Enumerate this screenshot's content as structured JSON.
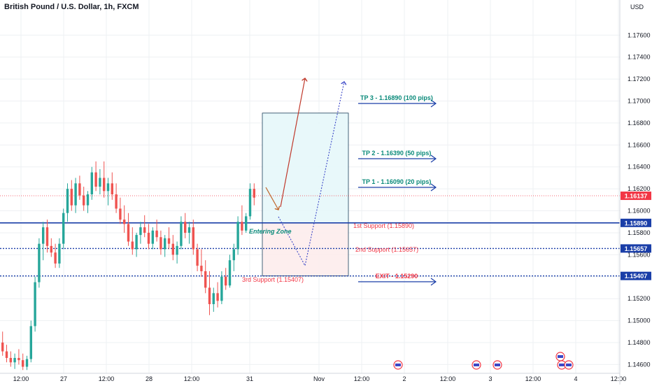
{
  "header": {
    "title": "British Pound / U.S. Dollar, 1h, FXCM",
    "currency": "USD"
  },
  "colors": {
    "bull": "#26a69a",
    "bear": "#ef5350",
    "level": "#1a3ea8",
    "price": "#f23645",
    "tp": "#0a8a7a",
    "exit": "#f23645",
    "grid": "#eef0f3",
    "axis_text": "#131722"
  },
  "chart_data": {
    "type": "candlestick",
    "symbol": "GBPUSD",
    "timeframe": "1h",
    "ylim": [
      1.1452,
      1.1792
    ],
    "y_ticks": [
      "1.17600",
      "1.17400",
      "1.17200",
      "1.17000",
      "1.16800",
      "1.16600",
      "1.16400",
      "1.16200",
      "1.16000",
      "1.15800",
      "1.15600",
      "1.15400",
      "1.15200",
      "1.15000",
      "1.14800",
      "1.14600"
    ],
    "x_ticks": [
      "12:00",
      "27",
      "12:00",
      "28",
      "12:00",
      "31",
      "Nov",
      "12:00",
      "2",
      "12:00",
      "3",
      "12:00",
      "4",
      "12:00"
    ],
    "last_price": {
      "value": 1.16137,
      "label": "1.16137"
    },
    "levels": [
      {
        "value": 1.1589,
        "label": "1.15890",
        "style": "solid",
        "annotation": "1st Support (1.15890)"
      },
      {
        "value": 1.15657,
        "label": "1.15657",
        "style": "dotted",
        "annotation": "2nd Support (1.15657)"
      },
      {
        "value": 1.15407,
        "label": "1.15407",
        "style": "dotted",
        "annotation": "3rd Support (1.15407)"
      }
    ],
    "targets": [
      {
        "label": "TP 3 - 1.16890 (100 pips)",
        "value": 1.1689
      },
      {
        "label": "TP 2 - 1.16390 (50 pips)",
        "value": 1.1639
      },
      {
        "label": "TP 1 - 1.16090 (20 pips)",
        "value": 1.1609
      },
      {
        "label": "EXIT - 1.15290",
        "value": 1.1529
      }
    ],
    "zone_label": "Entering Zone",
    "candles": [
      [
        1.148,
        1.149,
        1.1468,
        1.1472
      ],
      [
        1.1472,
        1.1478,
        1.1462,
        1.1466
      ],
      [
        1.1466,
        1.1472,
        1.1458,
        1.1462
      ],
      [
        1.1462,
        1.147,
        1.1456,
        1.1466
      ],
      [
        1.1466,
        1.1474,
        1.146,
        1.1464
      ],
      [
        1.1464,
        1.147,
        1.1455,
        1.1458
      ],
      [
        1.1458,
        1.1468,
        1.1455,
        1.1465
      ],
      [
        1.1465,
        1.15,
        1.1462,
        1.1495
      ],
      [
        1.1495,
        1.154,
        1.149,
        1.1535
      ],
      [
        1.1535,
        1.1575,
        1.153,
        1.157
      ],
      [
        1.157,
        1.159,
        1.1555,
        1.1585
      ],
      [
        1.1585,
        1.1592,
        1.1562,
        1.1568
      ],
      [
        1.1568,
        1.1575,
        1.1558,
        1.1562
      ],
      [
        1.1562,
        1.157,
        1.1548,
        1.1552
      ],
      [
        1.1552,
        1.1575,
        1.1548,
        1.157
      ],
      [
        1.157,
        1.1602,
        1.1565,
        1.1598
      ],
      [
        1.1598,
        1.1625,
        1.159,
        1.162
      ],
      [
        1.162,
        1.1628,
        1.16,
        1.1605
      ],
      [
        1.1605,
        1.163,
        1.1598,
        1.1625
      ],
      [
        1.1625,
        1.1632,
        1.161,
        1.1614
      ],
      [
        1.1614,
        1.1622,
        1.16,
        1.1605
      ],
      [
        1.1605,
        1.1618,
        1.1598,
        1.1615
      ],
      [
        1.1615,
        1.164,
        1.161,
        1.1635
      ],
      [
        1.1635,
        1.1645,
        1.1618,
        1.1622
      ],
      [
        1.1622,
        1.1638,
        1.1615,
        1.163
      ],
      [
        1.163,
        1.1645,
        1.1612,
        1.1618
      ],
      [
        1.1618,
        1.163,
        1.1605,
        1.1625
      ],
      [
        1.1625,
        1.1635,
        1.161,
        1.1615
      ],
      [
        1.1615,
        1.1625,
        1.1598,
        1.1602
      ],
      [
        1.1602,
        1.1612,
        1.1588,
        1.1592
      ],
      [
        1.1592,
        1.1605,
        1.158,
        1.1588
      ],
      [
        1.1588,
        1.1598,
        1.1568,
        1.1572
      ],
      [
        1.1572,
        1.1585,
        1.156,
        1.1565
      ],
      [
        1.1565,
        1.158,
        1.1558,
        1.1578
      ],
      [
        1.1578,
        1.159,
        1.157,
        1.1585
      ],
      [
        1.1585,
        1.1596,
        1.1576,
        1.158
      ],
      [
        1.158,
        1.1588,
        1.1565,
        1.157
      ],
      [
        1.157,
        1.1585,
        1.1565,
        1.1582
      ],
      [
        1.1582,
        1.1592,
        1.1572,
        1.1576
      ],
      [
        1.1576,
        1.1582,
        1.156,
        1.1565
      ],
      [
        1.1565,
        1.1578,
        1.1558,
        1.1575
      ],
      [
        1.1575,
        1.1585,
        1.1565,
        1.157
      ],
      [
        1.157,
        1.1578,
        1.1555,
        1.156
      ],
      [
        1.156,
        1.1572,
        1.1552,
        1.1568
      ],
      [
        1.1568,
        1.1595,
        1.1565,
        1.159
      ],
      [
        1.159,
        1.1598,
        1.1575,
        1.158
      ],
      [
        1.158,
        1.159,
        1.157,
        1.1585
      ],
      [
        1.1585,
        1.1592,
        1.156,
        1.1565
      ],
      [
        1.1565,
        1.157,
        1.1545,
        1.155
      ],
      [
        1.155,
        1.1565,
        1.154,
        1.1545
      ],
      [
        1.1545,
        1.1555,
        1.1525,
        1.153
      ],
      [
        1.153,
        1.1545,
        1.1505,
        1.1515
      ],
      [
        1.1515,
        1.153,
        1.1508,
        1.1525
      ],
      [
        1.1525,
        1.1535,
        1.1512,
        1.1518
      ],
      [
        1.1518,
        1.1545,
        1.1515,
        1.154
      ],
      [
        1.154,
        1.1548,
        1.1528,
        1.1532
      ],
      [
        1.1532,
        1.156,
        1.153,
        1.1555
      ],
      [
        1.1555,
        1.157,
        1.1545,
        1.1565
      ],
      [
        1.1565,
        1.1595,
        1.156,
        1.159
      ],
      [
        1.159,
        1.1605,
        1.1578,
        1.1582
      ],
      [
        1.1582,
        1.1598,
        1.158,
        1.1595
      ],
      [
        1.1595,
        1.1625,
        1.1592,
        1.162
      ],
      [
        1.162,
        1.1625,
        1.1605,
        1.1612
      ]
    ]
  }
}
